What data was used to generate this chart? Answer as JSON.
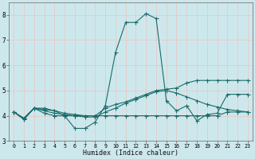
{
  "xlabel": "Humidex (Indice chaleur)",
  "background_color": "#cde8ec",
  "grid_color": "#b8d8dc",
  "line_color": "#1a6b6b",
  "xlim": [
    -0.5,
    23.5
  ],
  "ylim": [
    3,
    8.5
  ],
  "yticks": [
    3,
    4,
    5,
    6,
    7,
    8
  ],
  "xticks": [
    0,
    1,
    2,
    3,
    4,
    5,
    6,
    7,
    8,
    9,
    10,
    11,
    12,
    13,
    14,
    15,
    16,
    17,
    18,
    19,
    20,
    21,
    22,
    23
  ],
  "line1_x": [
    0,
    1,
    2,
    3,
    4,
    5,
    6,
    7,
    8,
    9,
    10,
    11,
    12,
    13,
    14,
    15,
    16,
    17,
    18,
    19,
    20,
    21,
    22,
    23
  ],
  "line1_y": [
    4.15,
    3.85,
    4.3,
    4.25,
    4.2,
    4.0,
    3.5,
    3.5,
    3.75,
    4.4,
    6.5,
    7.7,
    7.7,
    8.05,
    7.85,
    4.6,
    4.2,
    4.4,
    3.8,
    4.05,
    4.1,
    4.85,
    4.85,
    4.85
  ],
  "line2_x": [
    0,
    1,
    2,
    3,
    4,
    5,
    6,
    7,
    8,
    9,
    10,
    11,
    12,
    13,
    14,
    15,
    16,
    17,
    18,
    19,
    20,
    21,
    22,
    23
  ],
  "line2_y": [
    4.15,
    3.9,
    4.3,
    4.3,
    4.2,
    4.1,
    4.05,
    4.0,
    4.0,
    4.3,
    4.45,
    4.55,
    4.7,
    4.85,
    5.0,
    5.05,
    5.1,
    5.3,
    5.4,
    5.4,
    5.4,
    5.4,
    5.4,
    5.4
  ],
  "line3_x": [
    0,
    1,
    2,
    3,
    4,
    5,
    6,
    7,
    8,
    9,
    10,
    11,
    12,
    13,
    14,
    15,
    16,
    17,
    18,
    19,
    20,
    21,
    22,
    23
  ],
  "line3_y": [
    4.15,
    3.9,
    4.3,
    4.2,
    4.1,
    4.05,
    4.0,
    3.95,
    3.95,
    4.15,
    4.3,
    4.5,
    4.65,
    4.8,
    4.95,
    5.0,
    4.9,
    4.75,
    4.6,
    4.45,
    4.35,
    4.25,
    4.2,
    4.15
  ],
  "line4_x": [
    0,
    1,
    2,
    3,
    4,
    5,
    6,
    7,
    8,
    9,
    10,
    11,
    12,
    13,
    14,
    15,
    16,
    17,
    18,
    19,
    20,
    21,
    22,
    23
  ],
  "line4_y": [
    4.15,
    3.9,
    4.3,
    4.1,
    4.0,
    4.0,
    4.0,
    4.0,
    4.0,
    4.0,
    4.0,
    4.0,
    4.0,
    4.0,
    4.0,
    4.0,
    4.0,
    4.0,
    4.0,
    4.0,
    4.0,
    4.15,
    4.15,
    4.15
  ]
}
